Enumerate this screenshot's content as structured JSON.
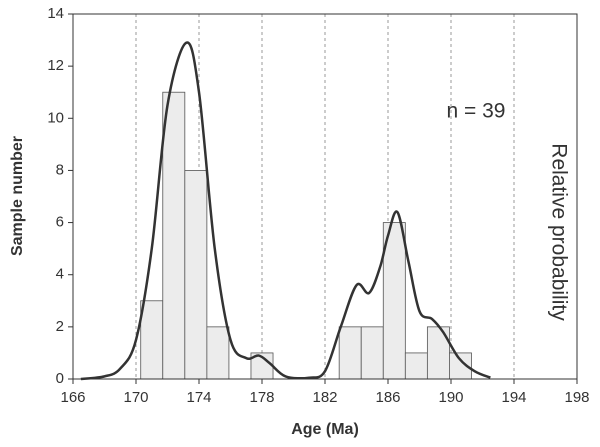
{
  "chart_data": {
    "type": "histogram",
    "x_label": "Age (Ma)",
    "y_label": "Sample number",
    "y2_label": "Relative probability",
    "annotation": "n = 39",
    "bins": [
      170.3,
      171.7,
      173.1,
      174.5,
      175.9,
      177.3,
      178.7,
      180.1,
      181.5,
      182.9,
      184.3,
      185.7,
      187.1,
      188.5,
      189.9,
      191.3
    ],
    "counts": [
      3,
      11,
      8,
      2,
      0,
      1,
      0,
      0,
      0,
      2,
      2,
      6,
      1,
      2,
      1
    ],
    "bar_color": "#ececec",
    "curve_x": [
      166.5,
      168,
      169,
      170,
      171,
      172,
      173.2,
      174,
      175,
      176,
      177,
      177.8,
      178.5,
      179.5,
      181,
      182,
      183,
      184,
      184.8,
      185.5,
      186,
      186.6,
      187.3,
      188,
      188.8,
      189.5,
      190.5,
      191.5,
      192.5
    ],
    "curve_values": [
      0,
      0.1,
      0.4,
      1.5,
      5,
      10.5,
      12.9,
      11,
      5,
      1.5,
      0.8,
      0.9,
      0.6,
      0.1,
      0.05,
      0.3,
      2,
      3.6,
      3.3,
      4.3,
      5.5,
      6.4,
      4.5,
      2.6,
      2.3,
      1.8,
      0.8,
      0.3,
      0.05
    ],
    "curve_color": "#333333",
    "xlim": [
      166,
      198
    ],
    "xticks": [
      166,
      170,
      174,
      178,
      182,
      186,
      190,
      194,
      198
    ],
    "ylim": [
      0,
      14
    ],
    "yticks": [
      0,
      2,
      4,
      6,
      8,
      10,
      12,
      14
    ],
    "grid": true
  }
}
